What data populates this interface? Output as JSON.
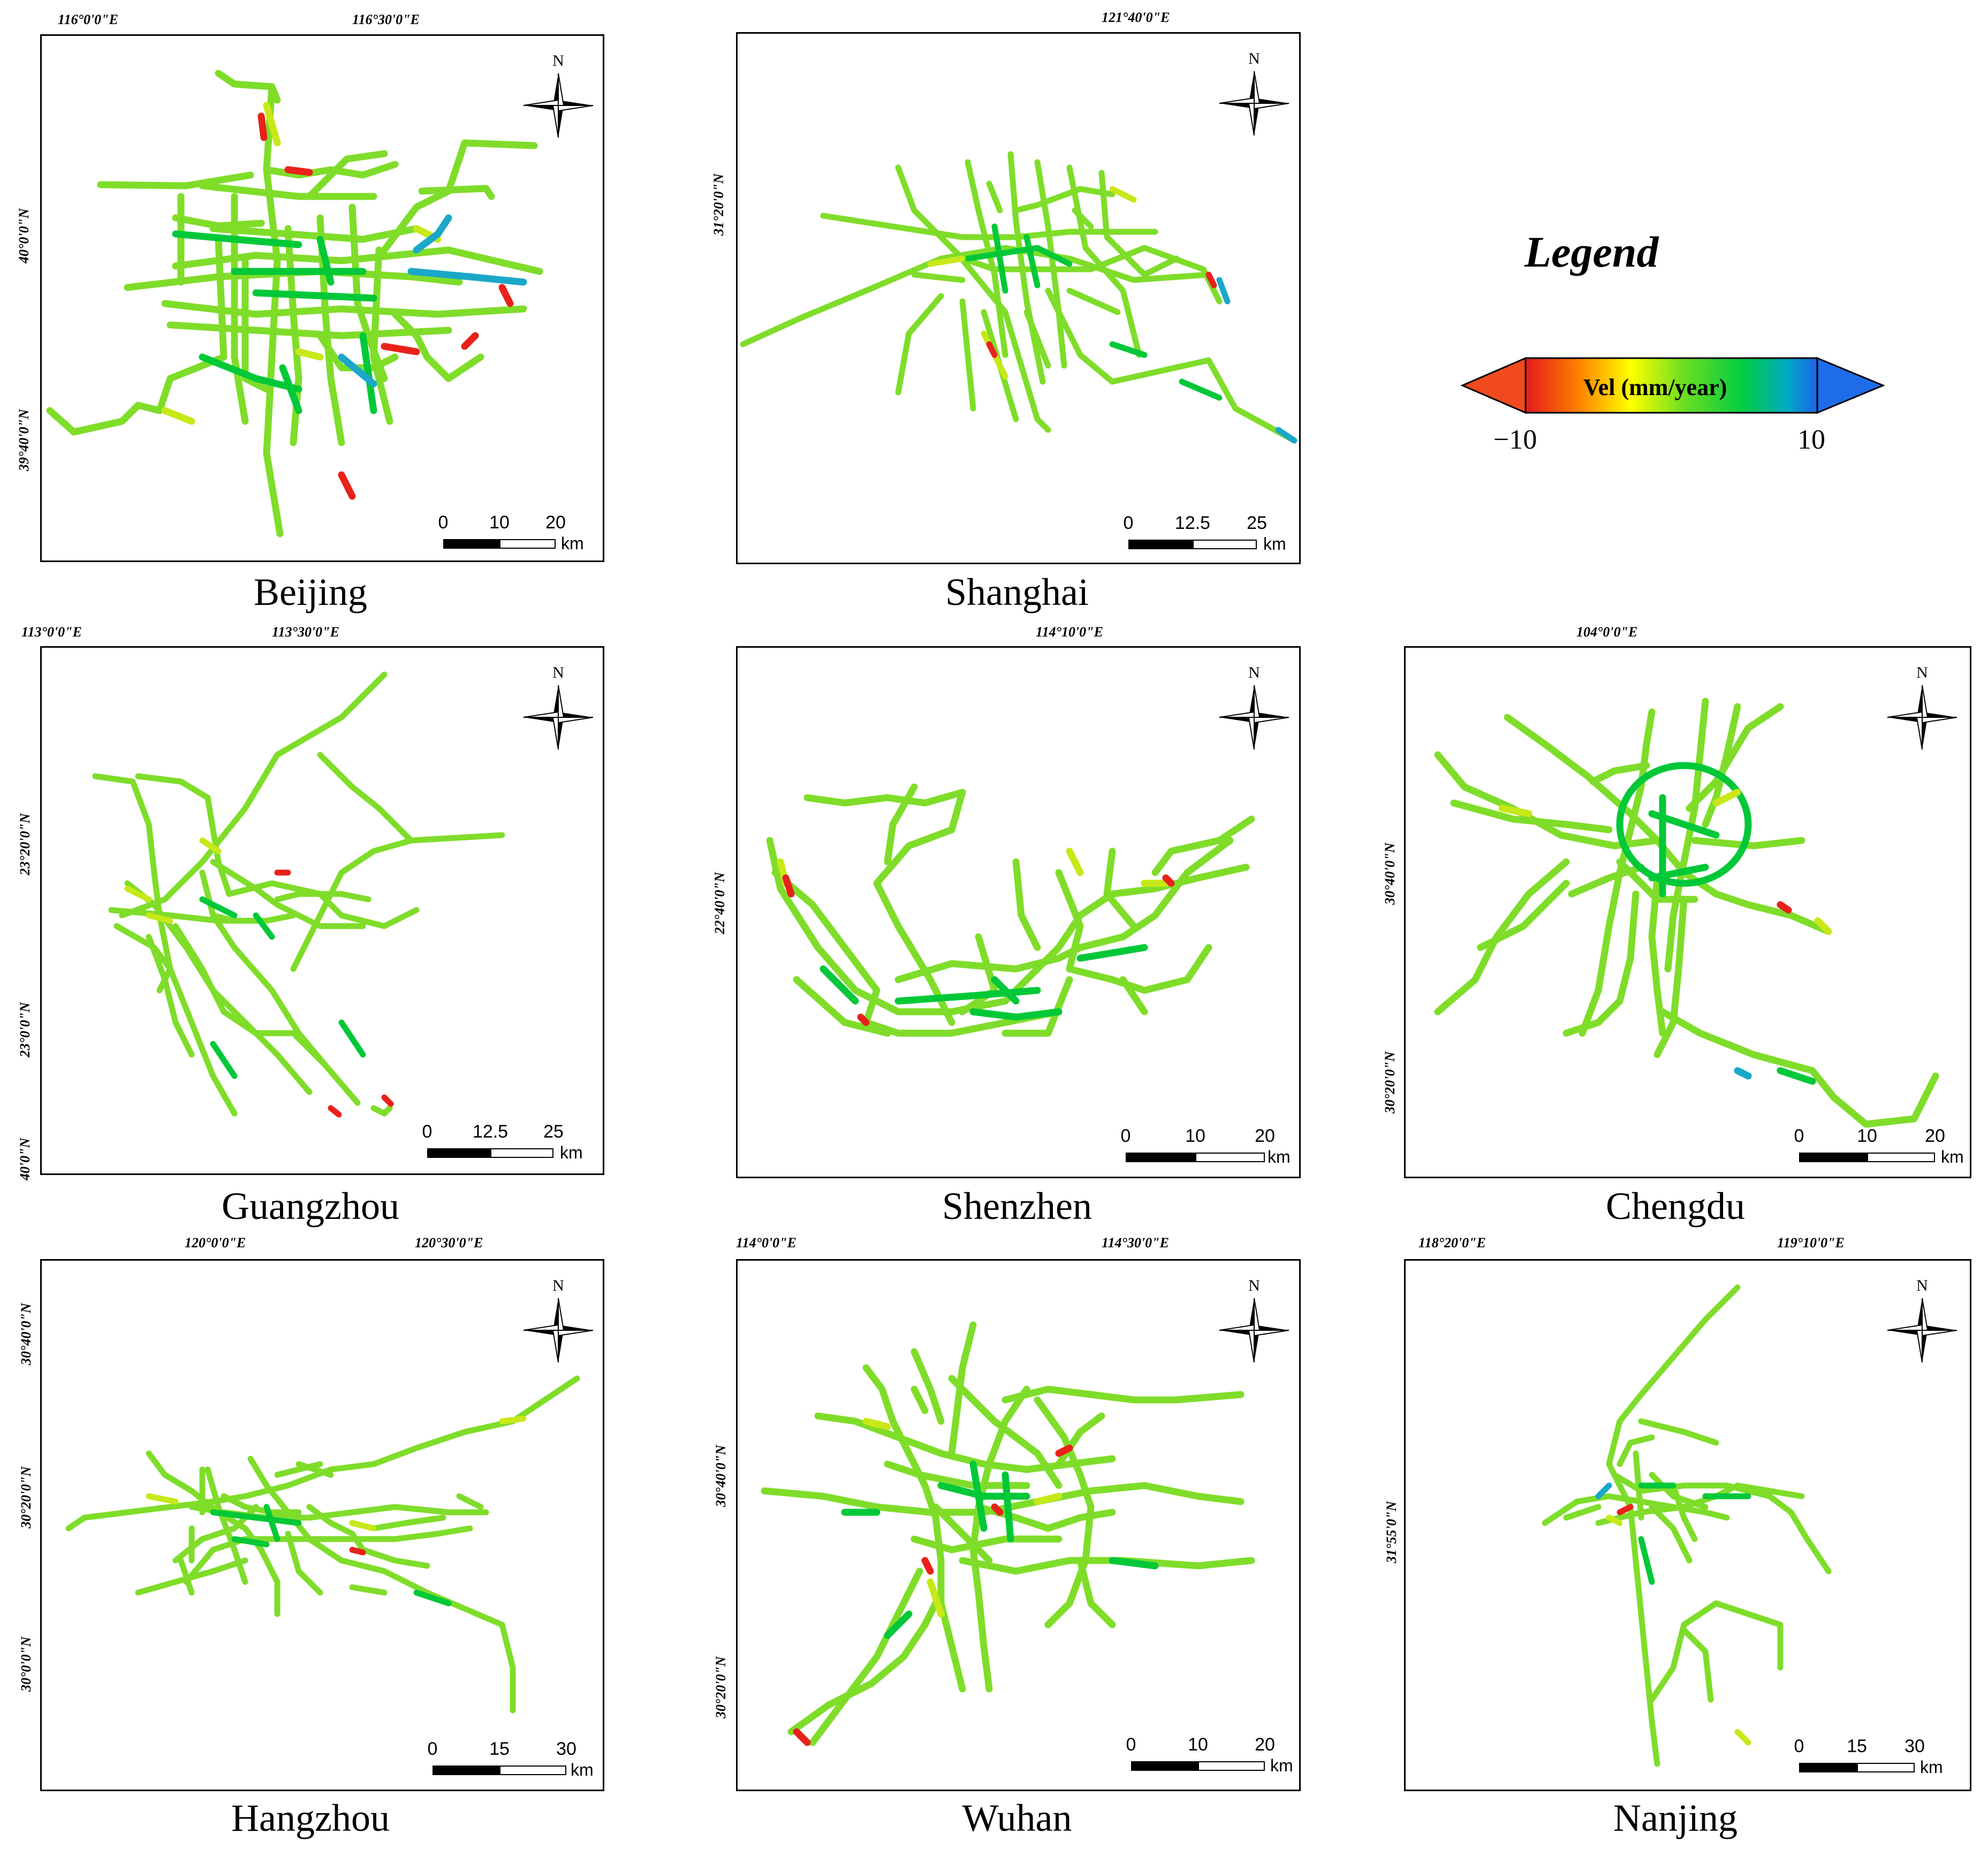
{
  "legend": {
    "title": "Legend",
    "bar_label": "Vel (mm/year)",
    "min_label": "−10",
    "max_label": "10",
    "colors": [
      "#e31a1c",
      "#ff7f00",
      "#ffff00",
      "#66dd22",
      "#00cc44",
      "#00a8c8",
      "#1e64e8"
    ]
  },
  "north_label": "N",
  "scale_unit": "km",
  "panels": [
    {
      "id": "beijing",
      "city": "Beijing",
      "top_coords": [
        "116°0'0\"E",
        "116°30'0\"E"
      ],
      "left_coords": [
        "40°0'0\"N",
        "39°40'0\"N"
      ],
      "scale_ticks": [
        "0",
        "10",
        "20"
      ]
    },
    {
      "id": "shanghai",
      "city": "Shanghai",
      "top_coords": [
        "121°40'0\"E"
      ],
      "left_coords": [
        "31°20'0\"N"
      ],
      "scale_ticks": [
        "0",
        "12.5",
        "25"
      ]
    },
    {
      "id": "guangzhou",
      "city": "Guangzhou",
      "top_coords": [
        "113°0'0\"E",
        "113°30'0\"E"
      ],
      "left_coords": [
        "23°20'0\"N",
        "23°0'0\"N",
        "40'0\"N"
      ],
      "scale_ticks": [
        "0",
        "12.5",
        "25"
      ]
    },
    {
      "id": "shenzhen",
      "city": "Shenzhen",
      "top_coords": [
        "114°10'0\"E"
      ],
      "left_coords": [
        "22°40'0\"N"
      ],
      "scale_ticks": [
        "0",
        "10",
        "20"
      ]
    },
    {
      "id": "chengdu",
      "city": "Chengdu",
      "top_coords": [
        "104°0'0\"E"
      ],
      "left_coords": [
        "30°40'0\"N",
        "30°20'0\"N"
      ],
      "scale_ticks": [
        "0",
        "10",
        "20"
      ]
    },
    {
      "id": "hangzhou",
      "city": "Hangzhou",
      "top_coords": [
        "120°0'0\"E",
        "120°30'0\"E"
      ],
      "left_coords": [
        "30°40'0\"N",
        "30°20'0\"N",
        "30°0'0\"N"
      ],
      "scale_ticks": [
        "0",
        "15",
        "30"
      ]
    },
    {
      "id": "wuhan",
      "city": "Wuhan",
      "top_coords": [
        "114°0'0\"E",
        "114°30'0\"E"
      ],
      "left_coords": [
        "30°40'0\"N",
        "30°20'0\"N"
      ],
      "scale_ticks": [
        "0",
        "10",
        "20"
      ]
    },
    {
      "id": "nanjing",
      "city": "Nanjing",
      "top_coords": [
        "118°20'0\"E",
        "119°10'0\"E"
      ],
      "left_coords": [
        "31°55'0\"N"
      ],
      "scale_ticks": [
        "0",
        "15",
        "30"
      ]
    }
  ]
}
